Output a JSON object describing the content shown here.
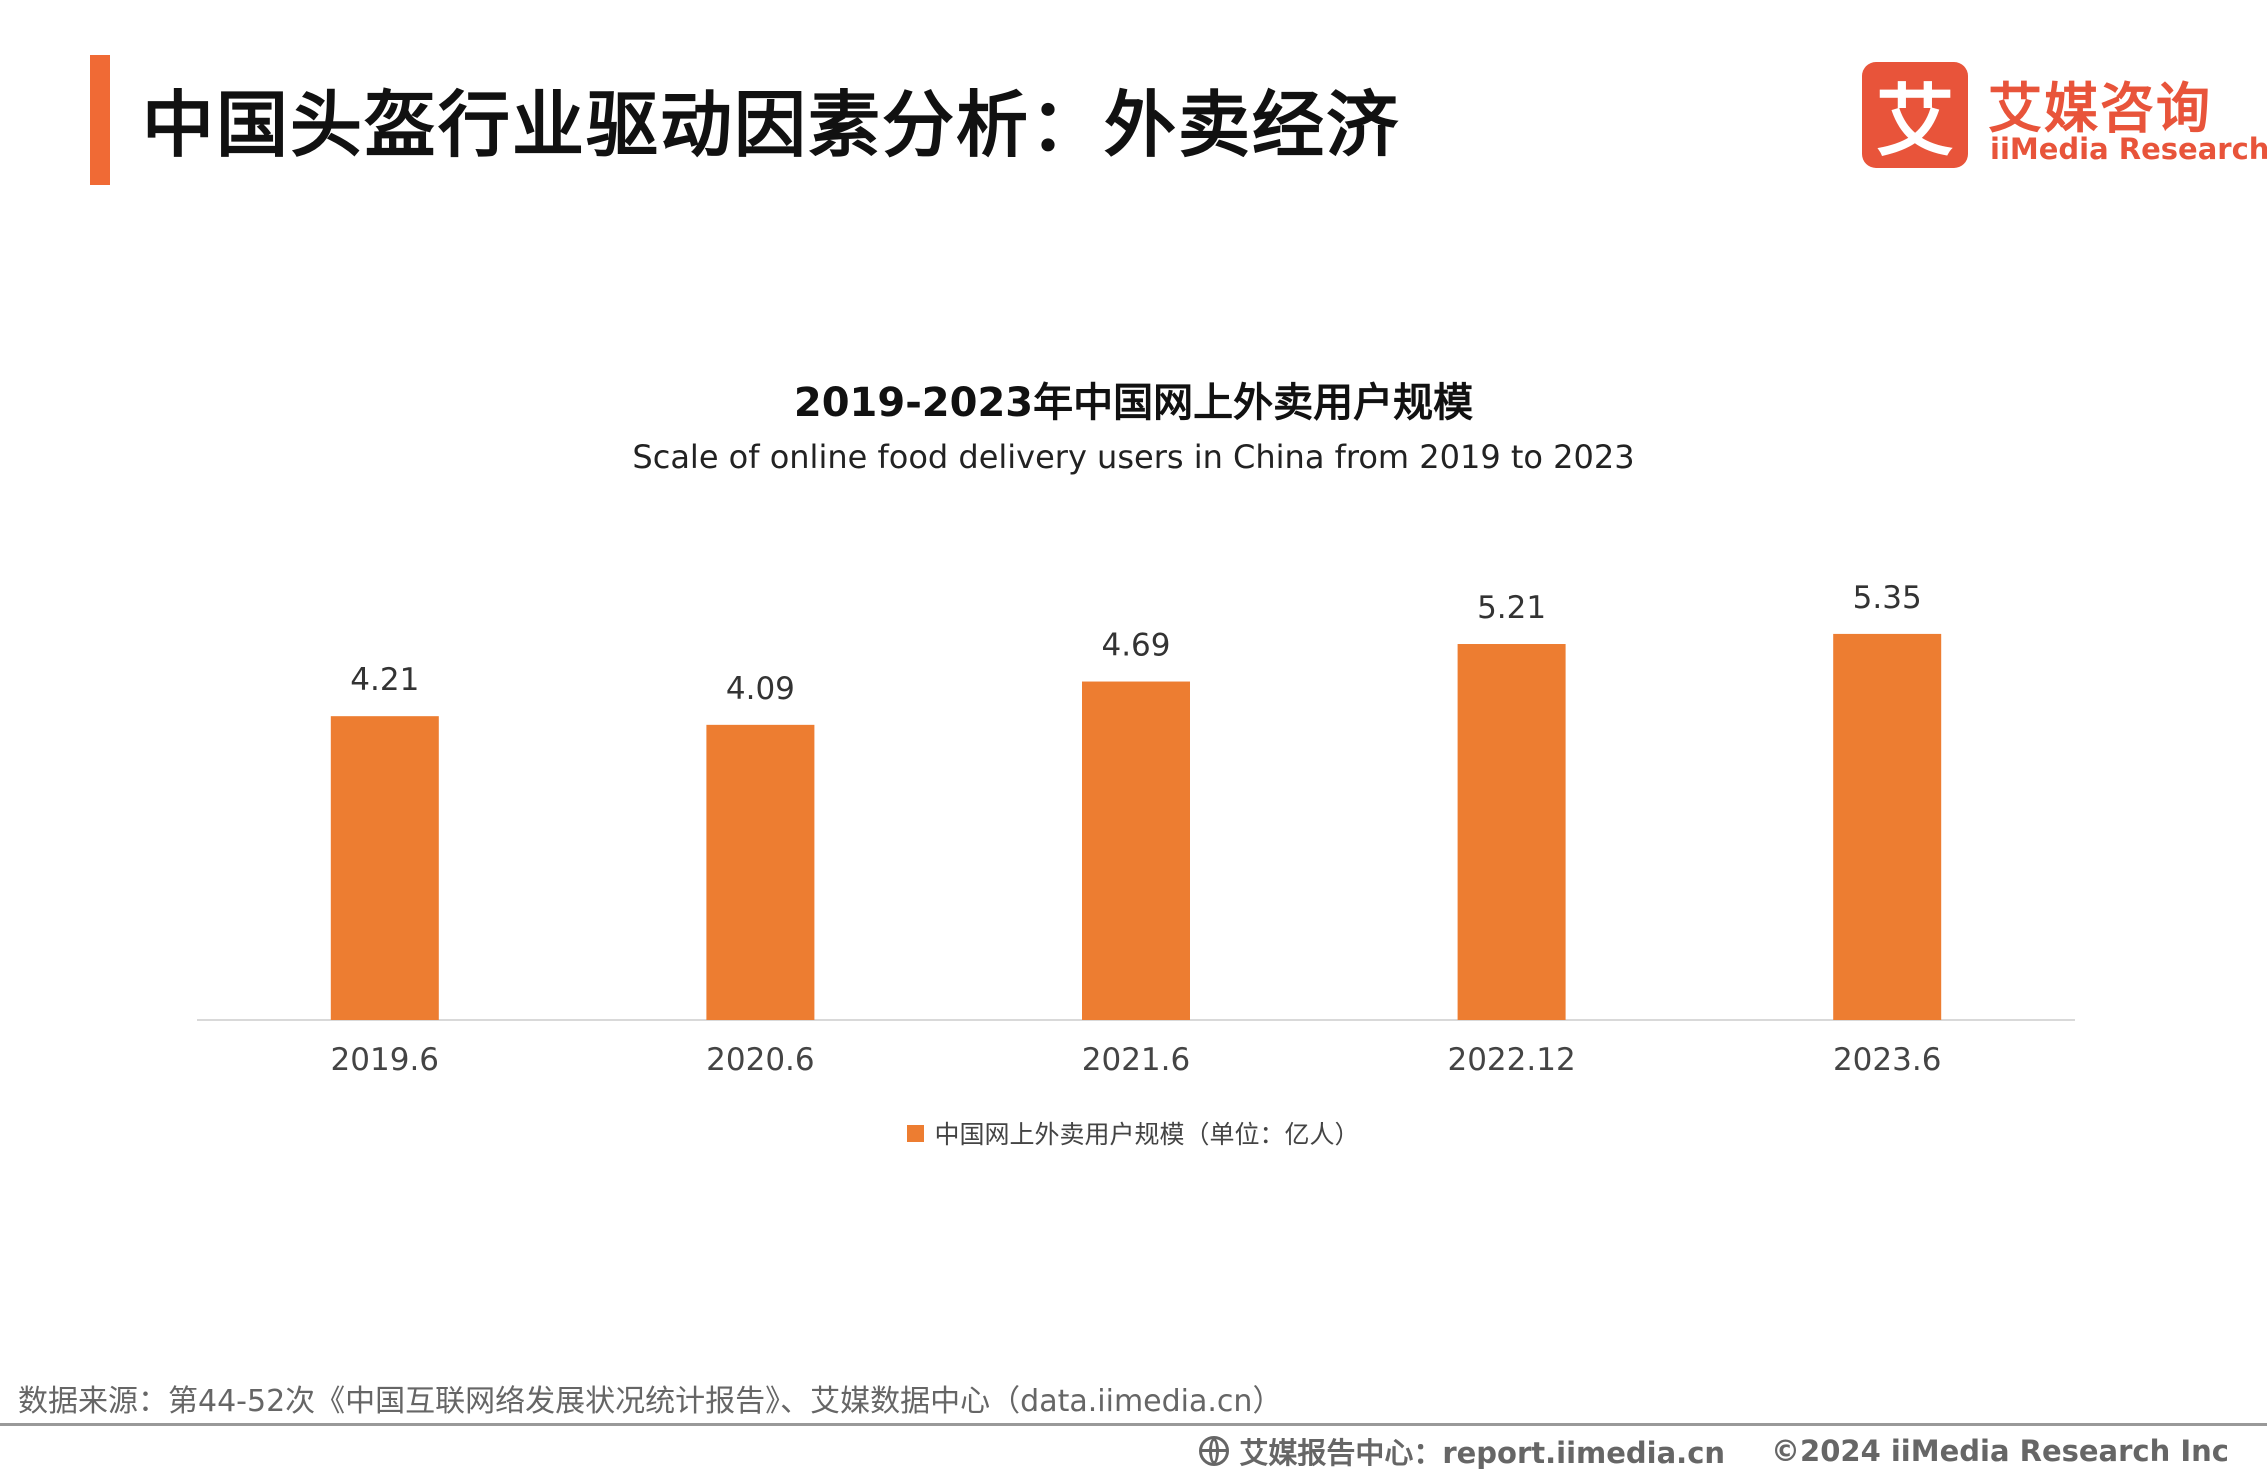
{
  "header": {
    "title": "中国头盔行业驱动因素分析：外卖经济"
  },
  "logo": {
    "mark": "艾",
    "name_cn": "艾媒咨询",
    "name_en": "iiMedia Research"
  },
  "chart_data": {
    "type": "bar",
    "title": "2019-2023年中国网上外卖用户规模",
    "subtitle": "Scale of online food delivery users in China from 2019 to 2023",
    "categories": [
      "2019.6",
      "2020.6",
      "2021.6",
      "2022.12",
      "2023.6"
    ],
    "series": [
      {
        "name": "中国网上外卖用户规模（单位：亿人）",
        "values": [
          4.21,
          4.09,
          4.69,
          5.21,
          5.35
        ],
        "color": "#ed7d31"
      }
    ],
    "data_labels": [
      "4.21",
      "4.09",
      "4.69",
      "5.21",
      "5.35"
    ],
    "ylim": [
      0,
      6
    ],
    "grid": false,
    "legend_position": "bottom-center"
  },
  "source_note": "数据来源：第44-52次《中国互联网络发展状况统计报告》、艾媒数据中心（data.iimedia.cn）",
  "footer": {
    "report_center": "艾媒报告中心：report.iimedia.cn",
    "copyright": "©2024  iiMedia Research  Inc"
  },
  "colors": {
    "accent": "#f06a35",
    "bar": "#ed7d31",
    "brand": "#e8543a"
  }
}
